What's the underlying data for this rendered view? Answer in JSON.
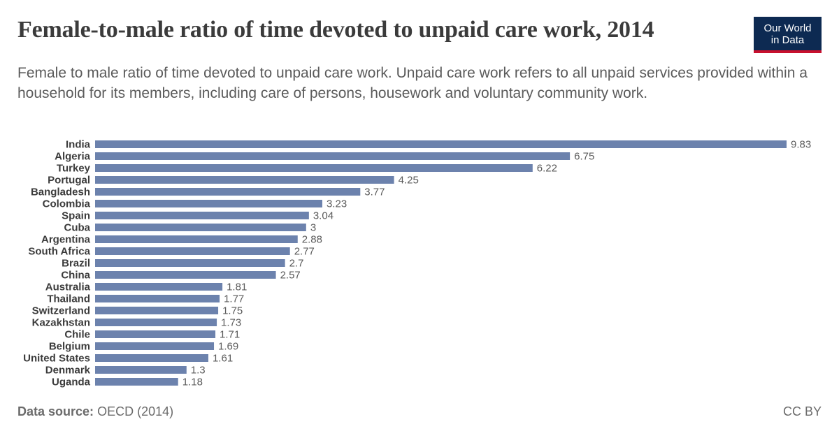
{
  "header": {
    "title": "Female-to-male ratio of time devoted to unpaid care work, 2014",
    "subtitle": "Female to male ratio of time devoted to unpaid care work. Unpaid care work refers to all unpaid services provided within a household for its members, including care of persons, housework and voluntary community work.",
    "logo_line1": "Our World",
    "logo_line2": "in Data"
  },
  "footer": {
    "source_label": "Data source:",
    "source_value": "OECD (2014)",
    "license": "CC BY"
  },
  "colors": {
    "bar": "#6c82ad",
    "label": "#3b3b3b",
    "value": "#5b5b5b",
    "logo_bg": "#0d2a52",
    "logo_accent": "#c8102e"
  },
  "chart_data": {
    "type": "bar",
    "orientation": "horizontal",
    "categories": [
      "India",
      "Algeria",
      "Turkey",
      "Portugal",
      "Bangladesh",
      "Colombia",
      "Spain",
      "Cuba",
      "Argentina",
      "South Africa",
      "Brazil",
      "China",
      "Australia",
      "Thailand",
      "Switzerland",
      "Kazakhstan",
      "Chile",
      "Belgium",
      "United States",
      "Denmark",
      "Uganda"
    ],
    "values": [
      9.83,
      6.75,
      6.22,
      4.25,
      3.77,
      3.23,
      3.04,
      3,
      2.88,
      2.77,
      2.7,
      2.57,
      1.81,
      1.77,
      1.75,
      1.73,
      1.71,
      1.69,
      1.61,
      1.3,
      1.18
    ],
    "value_labels": [
      "9.83",
      "6.75",
      "6.22",
      "4.25",
      "3.77",
      "3.23",
      "3.04",
      "3",
      "2.88",
      "2.77",
      "2.7",
      "2.57",
      "1.81",
      "1.77",
      "1.75",
      "1.73",
      "1.71",
      "1.69",
      "1.61",
      "1.3",
      "1.18"
    ],
    "xlim": [
      0,
      9.83
    ],
    "grid": false,
    "legend": "none"
  }
}
